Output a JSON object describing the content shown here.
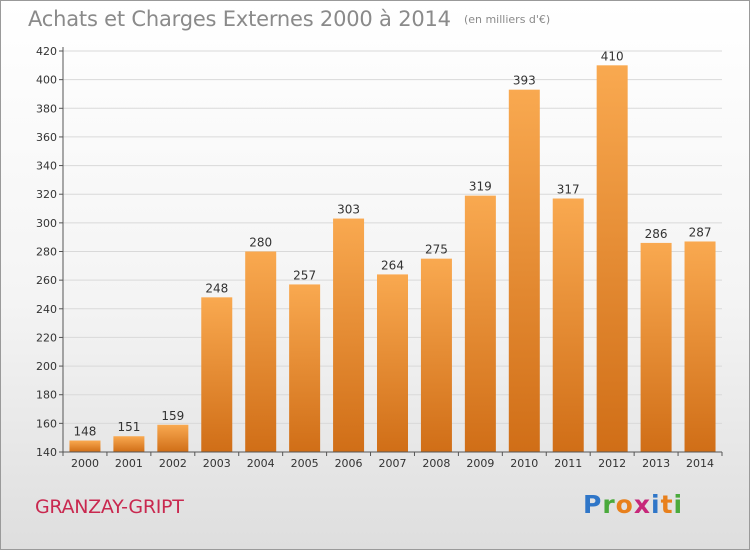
{
  "title": "Achats et Charges Externes 2000 à 2014",
  "unit": "(en milliers d'€)",
  "location": "GRANZAY-GRIPT",
  "logo": {
    "text": "Proxiti",
    "letter_colors": [
      "#2f76c8",
      "#4aaa3c",
      "#e8801c",
      "#c7287a",
      "#2f76c8",
      "#e8801c",
      "#4aaa3c"
    ]
  },
  "colors": {
    "bar_top": "#f9a950",
    "bar_bottom": "#d06e17",
    "axis": "#555555",
    "grid": "#d9d9d9"
  },
  "chart_data": {
    "type": "bar",
    "title": "Achats et Charges Externes 2000 à 2014",
    "subtitle": "(en milliers d'€)",
    "xlabel": "",
    "ylabel": "",
    "categories": [
      "2000",
      "2001",
      "2002",
      "2003",
      "2004",
      "2005",
      "2006",
      "2007",
      "2008",
      "2009",
      "2010",
      "2011",
      "2012",
      "2013",
      "2014"
    ],
    "values": [
      148,
      151,
      159,
      248,
      280,
      257,
      303,
      264,
      275,
      319,
      393,
      317,
      410,
      286,
      287
    ],
    "ylim": [
      140,
      420
    ],
    "yticks": [
      140,
      160,
      180,
      200,
      220,
      240,
      260,
      280,
      300,
      320,
      340,
      360,
      380,
      400,
      420
    ],
    "grid": true,
    "data_labels": true
  }
}
